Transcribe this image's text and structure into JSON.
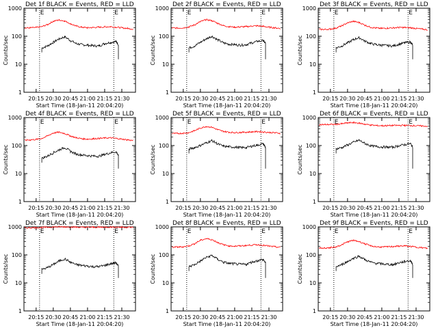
{
  "layout": {
    "columns": 3,
    "rows": 3
  },
  "shared_axes": {
    "ylabel": "Counts/sec",
    "xlabel": "Start Time (18-Jan-11 20:04:20)",
    "x_ticks": [
      "20:15",
      "20:30",
      "20:45",
      "21:00",
      "21:15",
      "21:30"
    ],
    "y_ticks": [
      "1",
      "10",
      "100",
      "1000"
    ],
    "y_scale": "log",
    "ylim": [
      1,
      1000
    ],
    "marker_letters": [
      "E",
      "E"
    ]
  },
  "colors": {
    "events": "#000000",
    "lld": "#ff0000",
    "axes": "#000000",
    "background": "#ffffff"
  },
  "chart_data": [
    {
      "type": "line",
      "title": "Det 1f BLACK = Events, RED = LLD",
      "x_start": "20:04:20",
      "x_end": "21:42",
      "series": [
        {
          "name": "BLACK = Events",
          "x": [
            "20:15",
            "20:20",
            "20:25",
            "20:30",
            "20:35",
            "20:40",
            "20:45",
            "20:50",
            "20:55",
            "21:00",
            "21:05",
            "21:10",
            "21:15",
            "21:20",
            "21:25",
            "21:27"
          ],
          "values": [
            null,
            38,
            45,
            60,
            80,
            95,
            70,
            55,
            50,
            48,
            46,
            45,
            55,
            60,
            65,
            50
          ]
        },
        {
          "name": "RED = LLD",
          "x": [
            "20:05",
            "20:10",
            "20:15",
            "20:20",
            "20:25",
            "20:30",
            "20:35",
            "20:40",
            "20:45",
            "20:50",
            "20:55",
            "21:00",
            "21:05",
            "21:10",
            "21:15",
            "21:20",
            "21:25",
            "21:30",
            "21:35",
            "21:40"
          ],
          "values": [
            195,
            200,
            205,
            220,
            260,
            340,
            380,
            350,
            280,
            230,
            210,
            200,
            205,
            210,
            215,
            220,
            210,
            200,
            190,
            180
          ]
        }
      ]
    },
    {
      "type": "line",
      "title": "Det 2f BLACK = Events, RED = LLD",
      "x_start": "20:04:20",
      "x_end": "21:42",
      "series": [
        {
          "name": "BLACK = Events",
          "x": [
            "20:15",
            "20:20",
            "20:25",
            "20:30",
            "20:35",
            "20:40",
            "20:45",
            "20:50",
            "20:55",
            "21:00",
            "21:05",
            "21:10",
            "21:15",
            "21:20",
            "21:25",
            "21:27"
          ],
          "values": [
            null,
            38,
            45,
            60,
            80,
            100,
            75,
            58,
            52,
            50,
            48,
            50,
            58,
            65,
            70,
            55
          ]
        },
        {
          "name": "RED = LLD",
          "x": [
            "20:05",
            "20:10",
            "20:15",
            "20:20",
            "20:25",
            "20:30",
            "20:35",
            "20:40",
            "20:45",
            "20:50",
            "20:55",
            "21:00",
            "21:05",
            "21:10",
            "21:15",
            "21:20",
            "21:25",
            "21:30",
            "21:35",
            "21:40"
          ],
          "values": [
            195,
            195,
            200,
            215,
            255,
            330,
            390,
            360,
            290,
            240,
            220,
            210,
            215,
            220,
            230,
            235,
            225,
            210,
            200,
            190
          ]
        }
      ]
    },
    {
      "type": "line",
      "title": "Det 3f BLACK = Events, RED = LLD",
      "x_start": "20:04:20",
      "x_end": "21:42",
      "series": [
        {
          "name": "BLACK = Events",
          "x": [
            "20:15",
            "20:20",
            "20:25",
            "20:30",
            "20:35",
            "20:40",
            "20:45",
            "20:50",
            "20:55",
            "21:00",
            "21:05",
            "21:10",
            "21:15",
            "21:20",
            "21:25",
            "21:27"
          ],
          "values": [
            null,
            38,
            45,
            58,
            75,
            90,
            68,
            55,
            50,
            48,
            46,
            45,
            52,
            58,
            62,
            48
          ]
        },
        {
          "name": "RED = LLD",
          "x": [
            "20:05",
            "20:10",
            "20:15",
            "20:20",
            "20:25",
            "20:30",
            "20:35",
            "20:40",
            "20:45",
            "20:50",
            "20:55",
            "21:00",
            "21:05",
            "21:10",
            "21:15",
            "21:20",
            "21:25",
            "21:30",
            "21:35",
            "21:40"
          ],
          "values": [
            175,
            175,
            180,
            195,
            235,
            300,
            340,
            310,
            250,
            210,
            195,
            190,
            195,
            200,
            205,
            205,
            200,
            190,
            180,
            170
          ]
        }
      ]
    },
    {
      "type": "line",
      "title": "Det 4f BLACK = Events, RED = LLD",
      "x_start": "20:04:20",
      "x_end": "21:42",
      "series": [
        {
          "name": "BLACK = Events",
          "x": [
            "20:15",
            "20:20",
            "20:25",
            "20:30",
            "20:35",
            "20:40",
            "20:45",
            "20:50",
            "20:55",
            "21:00",
            "21:05",
            "21:10",
            "21:15",
            "21:20",
            "21:25",
            "21:27"
          ],
          "values": [
            null,
            35,
            42,
            55,
            70,
            85,
            62,
            50,
            46,
            44,
            42,
            42,
            48,
            55,
            60,
            45
          ]
        },
        {
          "name": "RED = LLD",
          "x": [
            "20:05",
            "20:10",
            "20:15",
            "20:20",
            "20:25",
            "20:30",
            "20:35",
            "20:40",
            "20:45",
            "20:50",
            "20:55",
            "21:00",
            "21:05",
            "21:10",
            "21:15",
            "21:20",
            "21:25",
            "21:30",
            "21:35",
            "21:40"
          ],
          "values": [
            155,
            160,
            165,
            180,
            220,
            280,
            300,
            270,
            220,
            190,
            175,
            170,
            175,
            180,
            185,
            190,
            180,
            170,
            160,
            150
          ]
        }
      ]
    },
    {
      "type": "line",
      "title": "Det 5f BLACK = Events, RED = LLD",
      "x_start": "20:04:20",
      "x_end": "21:42",
      "series": [
        {
          "name": "BLACK = Events",
          "x": [
            "20:15",
            "20:20",
            "20:25",
            "20:30",
            "20:35",
            "20:40",
            "20:45",
            "20:50",
            "20:55",
            "21:00",
            "21:05",
            "21:10",
            "21:15",
            "21:20",
            "21:25",
            "21:27"
          ],
          "values": [
            null,
            75,
            85,
            100,
            125,
            150,
            115,
            95,
            90,
            88,
            85,
            85,
            95,
            105,
            115,
            85
          ]
        },
        {
          "name": "RED = LLD",
          "x": [
            "20:05",
            "20:10",
            "20:15",
            "20:20",
            "20:25",
            "20:30",
            "20:35",
            "20:40",
            "20:45",
            "20:50",
            "20:55",
            "21:00",
            "21:05",
            "21:10",
            "21:15",
            "21:20",
            "21:25",
            "21:30",
            "21:35",
            "21:40"
          ],
          "values": [
            270,
            270,
            275,
            290,
            340,
            420,
            480,
            450,
            370,
            320,
            300,
            290,
            295,
            300,
            310,
            315,
            305,
            295,
            285,
            275
          ]
        }
      ]
    },
    {
      "type": "line",
      "title": "Det 6f BLACK = Events, RED = LLD",
      "x_start": "20:04:20",
      "x_end": "21:42",
      "series": [
        {
          "name": "BLACK = Events",
          "x": [
            "20:15",
            "20:20",
            "20:25",
            "20:30",
            "20:35",
            "20:40",
            "20:45",
            "20:50",
            "20:55",
            "21:00",
            "21:05",
            "21:10",
            "21:15",
            "21:20",
            "21:25",
            "21:27"
          ],
          "values": [
            null,
            75,
            85,
            105,
            130,
            155,
            120,
            98,
            92,
            90,
            88,
            88,
            98,
            108,
            118,
            88
          ]
        },
        {
          "name": "RED = LLD",
          "x": [
            "20:05",
            "20:10",
            "20:15",
            "20:20",
            "20:25",
            "20:30",
            "20:35",
            "20:40",
            "20:45",
            "20:50",
            "20:55",
            "21:00",
            "21:05",
            "21:10",
            "21:15",
            "21:20",
            "21:25",
            "21:30",
            "21:35",
            "21:40"
          ],
          "values": [
            560,
            560,
            565,
            575,
            600,
            640,
            660,
            630,
            580,
            540,
            520,
            510,
            515,
            520,
            525,
            525,
            520,
            510,
            500,
            490
          ]
        }
      ]
    },
    {
      "type": "line",
      "title": "Det 7f BLACK = Events, RED = LLD",
      "x_start": "20:04:20",
      "x_end": "21:42",
      "series": [
        {
          "name": "BLACK = Events",
          "x": [
            "20:15",
            "20:20",
            "20:25",
            "20:30",
            "20:35",
            "20:40",
            "20:45",
            "20:50",
            "20:55",
            "21:00",
            "21:05",
            "21:10",
            "21:15",
            "21:20",
            "21:25",
            "21:27"
          ],
          "values": [
            null,
            30,
            35,
            45,
            60,
            72,
            55,
            45,
            42,
            40,
            38,
            38,
            42,
            48,
            52,
            40
          ]
        },
        {
          "name": "RED = LLD",
          "x": [
            "20:05",
            "20:10",
            "20:15",
            "20:20",
            "20:25",
            "20:30",
            "20:35",
            "20:40",
            "20:45",
            "20:50",
            "20:55",
            "21:00",
            "21:05",
            "21:10",
            "21:15",
            "21:20",
            "21:25",
            "21:30",
            "21:35",
            "21:40"
          ],
          "values": [
            920,
            930,
            940,
            950,
            970,
            990,
            1000,
            1000,
            990,
            980,
            970,
            965,
            970,
            975,
            980,
            985,
            980,
            975,
            970,
            960
          ]
        }
      ]
    },
    {
      "type": "line",
      "title": "Det 8f BLACK = Events, RED = LLD",
      "x_start": "20:04:20",
      "x_end": "21:42",
      "series": [
        {
          "name": "BLACK = Events",
          "x": [
            "20:15",
            "20:20",
            "20:25",
            "20:30",
            "20:35",
            "20:40",
            "20:45",
            "20:50",
            "20:55",
            "21:00",
            "21:05",
            "21:10",
            "21:15",
            "21:20",
            "21:25",
            "21:27"
          ],
          "values": [
            null,
            38,
            45,
            60,
            80,
            95,
            70,
            55,
            50,
            48,
            46,
            46,
            55,
            62,
            68,
            52
          ]
        },
        {
          "name": "RED = LLD",
          "x": [
            "20:05",
            "20:10",
            "20:15",
            "20:20",
            "20:25",
            "20:30",
            "20:35",
            "20:40",
            "20:45",
            "20:50",
            "20:55",
            "21:00",
            "21:05",
            "21:10",
            "21:15",
            "21:20",
            "21:25",
            "21:30",
            "21:35",
            "21:40"
          ],
          "values": [
            190,
            190,
            195,
            210,
            250,
            330,
            380,
            350,
            280,
            230,
            210,
            205,
            210,
            215,
            225,
            230,
            220,
            205,
            195,
            185
          ]
        }
      ]
    },
    {
      "type": "line",
      "title": "Det 9f BLACK = Events, RED = LLD",
      "x_start": "20:04:20",
      "x_end": "21:42",
      "series": [
        {
          "name": "BLACK = Events",
          "x": [
            "20:15",
            "20:20",
            "20:25",
            "20:30",
            "20:35",
            "20:40",
            "20:45",
            "20:50",
            "20:55",
            "21:00",
            "21:05",
            "21:10",
            "21:15",
            "21:20",
            "21:25",
            "21:27"
          ],
          "values": [
            null,
            38,
            45,
            58,
            75,
            90,
            68,
            55,
            50,
            48,
            46,
            45,
            52,
            58,
            62,
            48
          ]
        },
        {
          "name": "RED = LLD",
          "x": [
            "20:05",
            "20:10",
            "20:15",
            "20:20",
            "20:25",
            "20:30",
            "20:35",
            "20:40",
            "20:45",
            "20:50",
            "20:55",
            "21:00",
            "21:05",
            "21:10",
            "21:15",
            "21:20",
            "21:25",
            "21:30",
            "21:35",
            "21:40"
          ],
          "values": [
            175,
            175,
            180,
            195,
            230,
            290,
            330,
            300,
            250,
            210,
            195,
            190,
            195,
            200,
            205,
            210,
            200,
            190,
            180,
            170
          ]
        }
      ]
    }
  ]
}
